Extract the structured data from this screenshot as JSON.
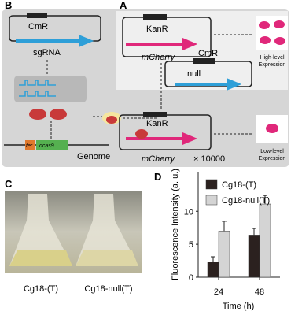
{
  "panels": {
    "a": "A",
    "b": "B",
    "c": "C",
    "d": "D"
  },
  "panel_b": {
    "marker": "CmR",
    "gene": "sgRNA",
    "genome": "Genome",
    "ter": "ter",
    "dcas9": "dcas9"
  },
  "panel_a": {
    "marker": "KanR",
    "gene": "mCherry",
    "null_marker": "CmR",
    "null": "null",
    "high": [
      "High-level",
      "Expression"
    ],
    "low": [
      "Low-level",
      "Expression"
    ]
  },
  "panel_c": {
    "labels": [
      "Cg18-(T)",
      "Cg18-null(T)"
    ]
  },
  "chart_data": {
    "type": "bar",
    "categories": [
      "24",
      "48"
    ],
    "x_label": "Time (h)",
    "y_label": "Fluorescence Intensity (a. u.)",
    "y_scale_label": "× 10000",
    "ylim": [
      0,
      16
    ],
    "yticks": [
      0,
      5,
      10
    ],
    "legend": "upper left",
    "series": [
      {
        "name": "Cg18-(T)",
        "color": "#2b211f",
        "values": [
          2.3,
          6.4
        ],
        "errors": [
          0.8,
          1.0
        ]
      },
      {
        "name": "Cg18-null(T)",
        "color": "#d4d4d4",
        "values": [
          7.0,
          11.1
        ],
        "errors": [
          1.5,
          1.3
        ]
      }
    ]
  }
}
